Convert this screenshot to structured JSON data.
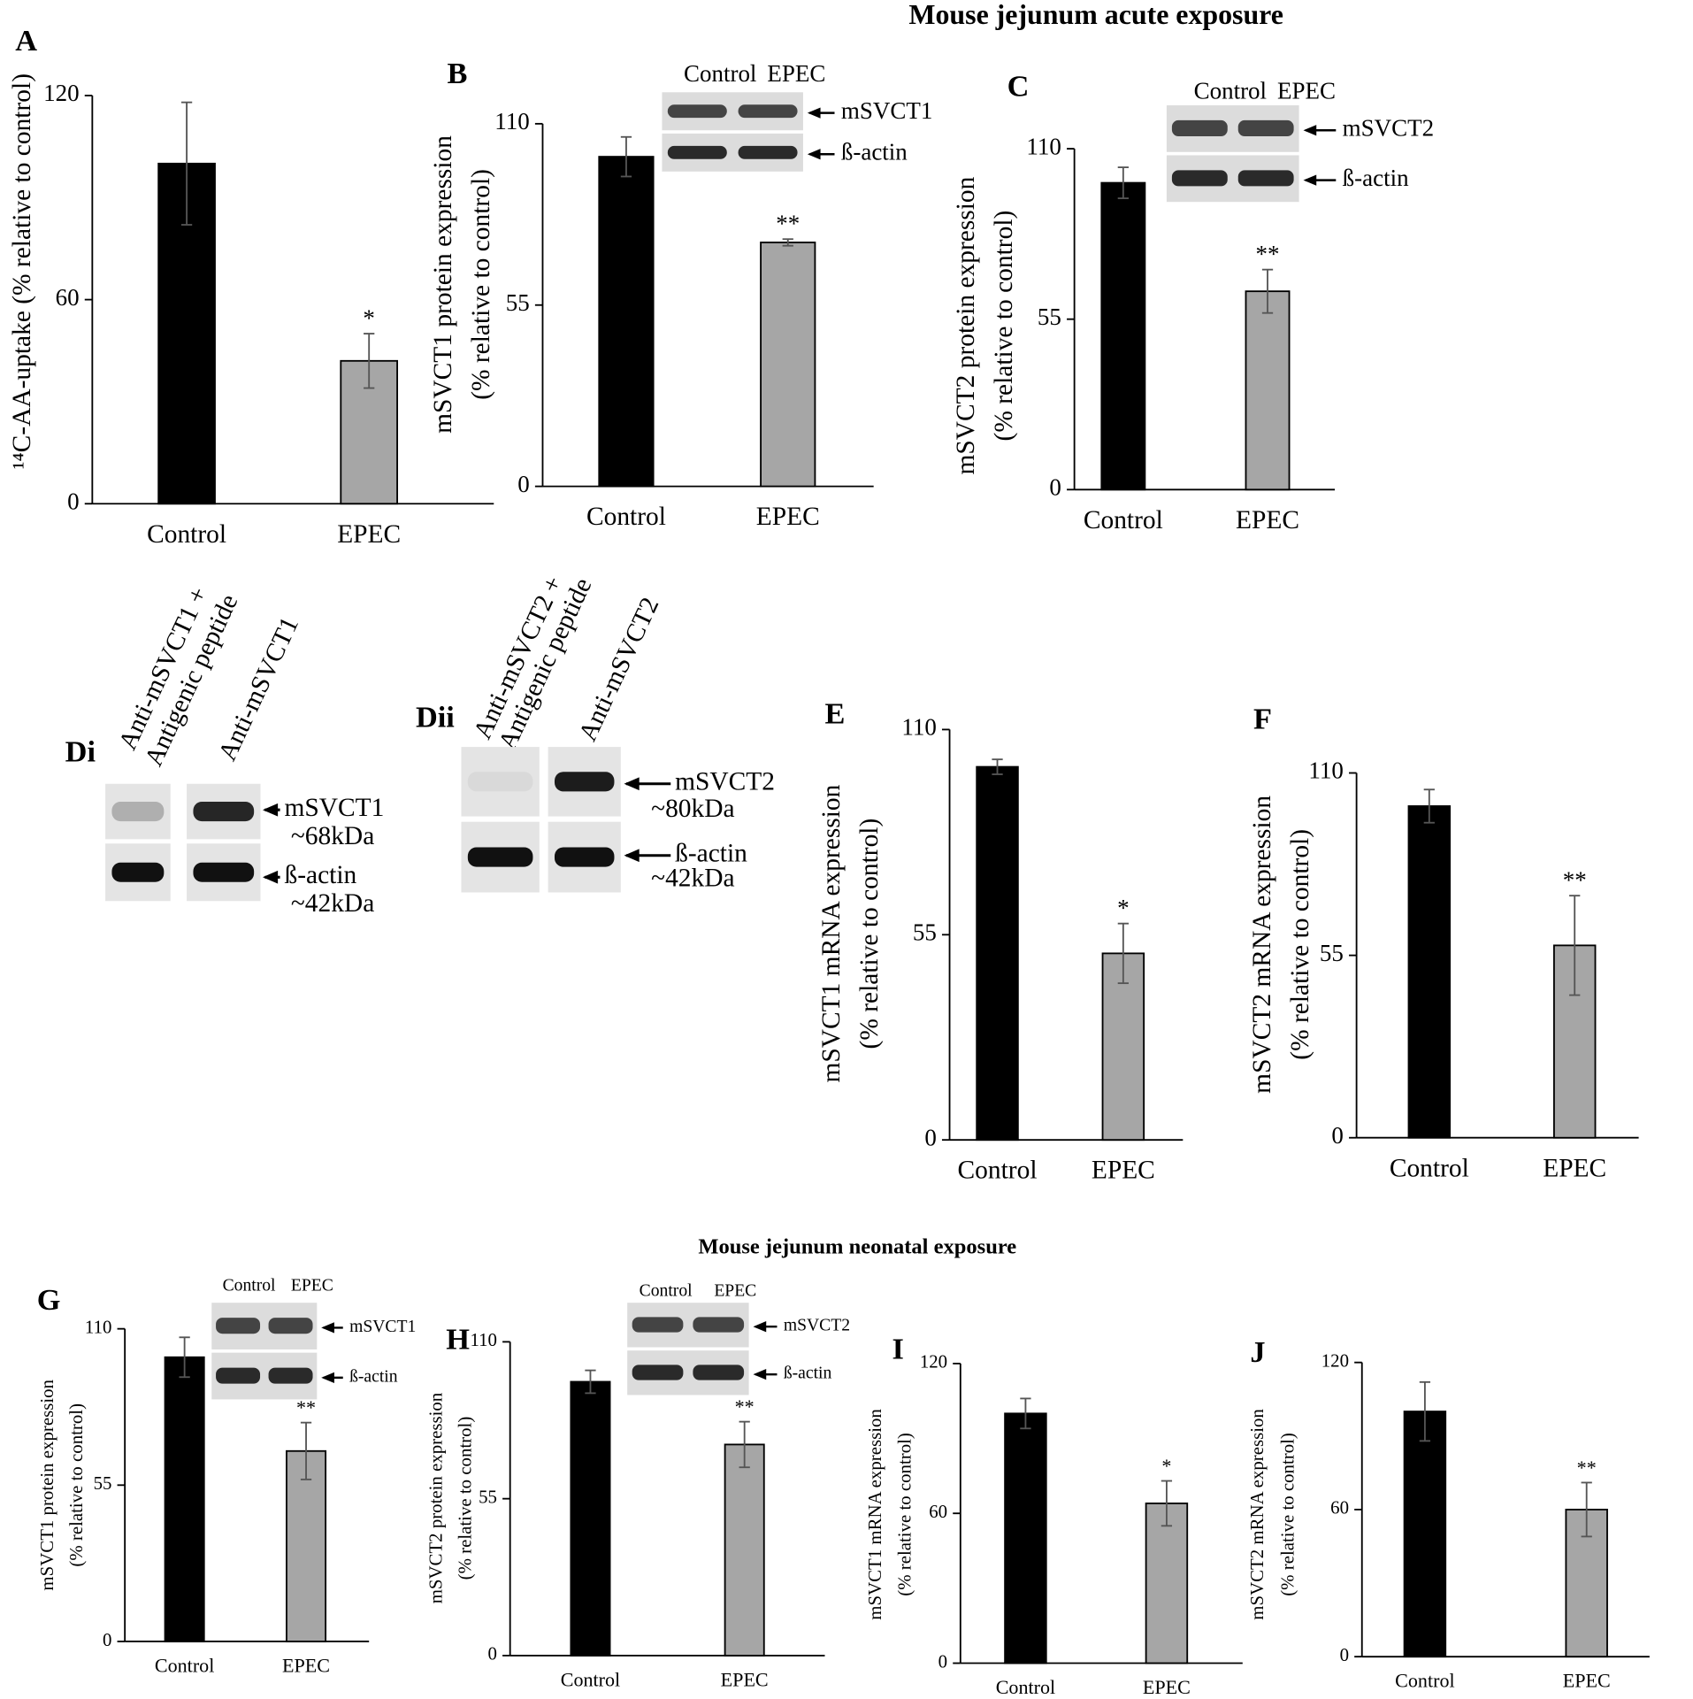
{
  "titles": [
    "Mouse jejunum acute exposure",
    "Mouse jejunum neonatal exposure"
  ],
  "chart_data": [
    {
      "type": "bar",
      "panel": "A",
      "ylabel": [
        "¹⁴C-AA-uptake (% relative to control)"
      ],
      "categories": [
        "Control",
        "EPEC"
      ],
      "values": [
        100,
        42
      ],
      "errors": [
        18,
        8
      ],
      "colors": [
        "#000000",
        "#a6a6a6"
      ],
      "significance": [
        null,
        "*"
      ],
      "ylim": [
        0,
        120
      ],
      "yticks": [
        0,
        60,
        120
      ]
    },
    {
      "type": "bar",
      "panel": "B",
      "ylabel": [
        "mSVCT1 protein expression",
        "(% relative to control)"
      ],
      "categories": [
        "Control",
        "EPEC"
      ],
      "values": [
        100,
        74
      ],
      "errors": [
        6,
        1
      ],
      "colors": [
        "#000000",
        "#a6a6a6"
      ],
      "significance": [
        null,
        "**"
      ],
      "ylim": [
        0,
        110
      ],
      "yticks": [
        0,
        55,
        110
      ],
      "blot": {
        "lanes": [
          "Control",
          "EPEC"
        ],
        "bands": [
          "mSVCT1",
          "ß-actin"
        ]
      }
    },
    {
      "type": "bar",
      "panel": "C",
      "ylabel": [
        "mSVCT2 protein expression",
        "(% relative to control)"
      ],
      "categories": [
        "Control",
        "EPEC"
      ],
      "values": [
        99,
        64
      ],
      "errors": [
        5,
        7
      ],
      "colors": [
        "#000000",
        "#a6a6a6"
      ],
      "significance": [
        null,
        "**"
      ],
      "ylim": [
        0,
        110
      ],
      "yticks": [
        0,
        55,
        110
      ],
      "blot": {
        "lanes": [
          "Control",
          "EPEC"
        ],
        "bands": [
          "mSVCT2",
          "ß-actin"
        ]
      }
    },
    {
      "type": "bar",
      "panel": "E",
      "ylabel": [
        "mSVCT1 mRNA expression",
        "(% relative to control)"
      ],
      "categories": [
        "Control",
        "EPEC"
      ],
      "values": [
        100,
        50
      ],
      "errors": [
        2,
        8
      ],
      "colors": [
        "#000000",
        "#a6a6a6"
      ],
      "significance": [
        null,
        "*"
      ],
      "ylim": [
        0,
        110
      ],
      "yticks": [
        0,
        55,
        110
      ]
    },
    {
      "type": "bar",
      "panel": "F",
      "ylabel": [
        "mSVCT2 mRNA expression",
        "(% relative to control)"
      ],
      "categories": [
        "Control",
        "EPEC"
      ],
      "values": [
        100,
        58
      ],
      "errors": [
        5,
        15
      ],
      "colors": [
        "#000000",
        "#a6a6a6"
      ],
      "significance": [
        null,
        "**"
      ],
      "ylim": [
        0,
        110
      ],
      "yticks": [
        0,
        55,
        110
      ]
    },
    {
      "type": "bar",
      "panel": "G",
      "ylabel": [
        "mSVCT1 protein expression",
        "(% relative to control)"
      ],
      "categories": [
        "Control",
        "EPEC"
      ],
      "values": [
        100,
        67
      ],
      "errors": [
        7,
        10
      ],
      "colors": [
        "#000000",
        "#a6a6a6"
      ],
      "significance": [
        null,
        "**"
      ],
      "ylim": [
        0,
        110
      ],
      "yticks": [
        0,
        55,
        110
      ],
      "blot": {
        "lanes": [
          "Control",
          "EPEC"
        ],
        "bands": [
          "mSVCT1",
          "ß-actin"
        ]
      }
    },
    {
      "type": "bar",
      "panel": "H",
      "ylabel": [
        "mSVCT2 protein expression",
        "(% relative to control)"
      ],
      "categories": [
        "Control",
        "EPEC"
      ],
      "values": [
        96,
        74
      ],
      "errors": [
        4,
        8
      ],
      "colors": [
        "#000000",
        "#a6a6a6"
      ],
      "significance": [
        null,
        "**"
      ],
      "ylim": [
        0,
        110
      ],
      "yticks": [
        0,
        55,
        110
      ],
      "blot": {
        "lanes": [
          "Control",
          "EPEC"
        ],
        "bands": [
          "mSVCT2",
          "ß-actin"
        ]
      }
    },
    {
      "type": "bar",
      "panel": "I",
      "ylabel": [
        "mSVCT1 mRNA expression",
        "(% relative to control)"
      ],
      "categories": [
        "Control",
        "EPEC"
      ],
      "values": [
        100,
        64
      ],
      "errors": [
        6,
        9
      ],
      "colors": [
        "#000000",
        "#a6a6a6"
      ],
      "significance": [
        null,
        "*"
      ],
      "ylim": [
        0,
        120
      ],
      "yticks": [
        0,
        60,
        120
      ]
    },
    {
      "type": "bar",
      "panel": "J",
      "ylabel": [
        "mSVCT2 mRNA expression",
        "(% relative to control)"
      ],
      "categories": [
        "Control",
        "EPEC"
      ],
      "values": [
        100,
        60
      ],
      "errors": [
        12,
        11
      ],
      "colors": [
        "#000000",
        "#a6a6a6"
      ],
      "significance": [
        null,
        "**"
      ],
      "ylim": [
        0,
        120
      ],
      "yticks": [
        0,
        60,
        120
      ]
    }
  ],
  "blots": [
    {
      "panel": "Di",
      "lanes": [
        [
          "Anti-mSVCT1 +",
          "Antigenic peptide"
        ],
        [
          "Anti-mSVCT1"
        ]
      ],
      "bands": [
        [
          "mSVCT1",
          "~68kDa"
        ],
        [
          "ß-actin",
          "~42kDa"
        ]
      ]
    },
    {
      "panel": "Dii",
      "lanes": [
        [
          "Anti-mSVCT2 +",
          "Antigenic peptide"
        ],
        [
          "Anti-mSVCT2"
        ]
      ],
      "bands": [
        [
          "mSVCT2",
          "~80kDa"
        ],
        [
          "ß-actin",
          "~42kDa"
        ]
      ]
    }
  ]
}
